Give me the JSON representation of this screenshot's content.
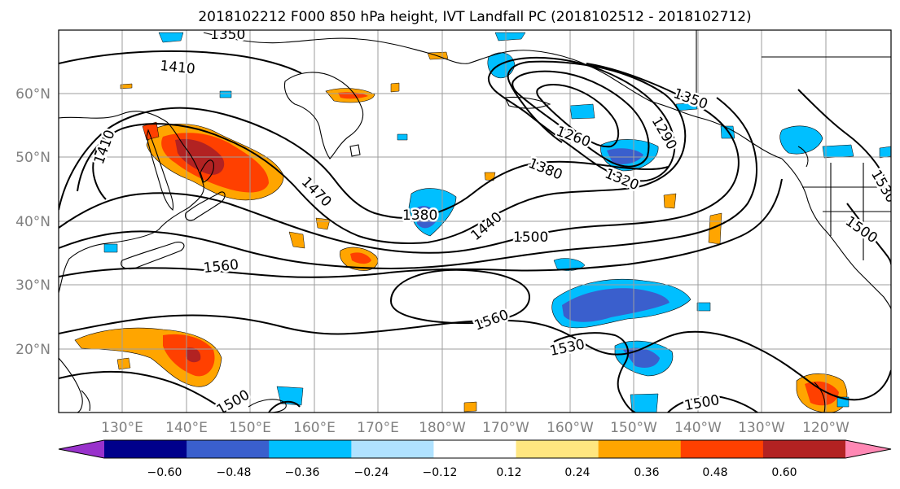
{
  "title": "2018102212 F000 850 hPa height, IVT Landfall PC (2018102512 - 2018102712)",
  "lat_labels": [
    "60°N",
    "50°N",
    "40°N",
    "30°N",
    "20°N"
  ],
  "lon_labels": [
    "130°E",
    "140°E",
    "150°E",
    "160°E",
    "170°E",
    "180°W",
    "170°W",
    "160°W",
    "150°W",
    "140°W",
    "130°W",
    "120°W"
  ],
  "contour_labels": [
    "1350",
    "1410",
    "1410",
    "1470",
    "1380",
    "1440",
    "1500",
    "1560",
    "1260",
    "1380",
    "1320",
    "1290",
    "1350",
    "1560",
    "1530",
    "1500",
    "1500",
    "1500",
    "1530"
  ],
  "colorbar": {
    "ticks": [
      "−0.60",
      "−0.48",
      "−0.36",
      "−0.24",
      "−0.12",
      "0.12",
      "0.24",
      "0.36",
      "0.48",
      "0.60"
    ],
    "colors": [
      "#9932cc",
      "#00008b",
      "#3a5fcd",
      "#00bfff",
      "#b0e2ff",
      "#ffffff",
      "#ffe680",
      "#ffa500",
      "#ff4000",
      "#b22222",
      "#ff88b4"
    ]
  }
}
